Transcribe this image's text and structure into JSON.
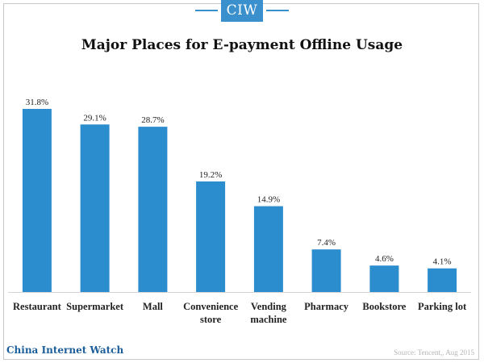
{
  "logo": "CIW",
  "brand": "China Internet Watch",
  "source": "Source: Tencent,, Aug 2015",
  "colors": {
    "bar": "#2b8cce",
    "logo": "#3a8fcd",
    "brand": "#1b5e9a"
  },
  "chart_data": {
    "type": "bar",
    "title": "Major Places for E-payment Offline Usage",
    "xlabel": "",
    "ylabel": "",
    "categories": [
      "Restaurant",
      "Supermarket",
      "Mall",
      "Convenience store",
      "Vending machine",
      "Pharmacy",
      "Bookstore",
      "Parking lot"
    ],
    "category_lines": [
      [
        "Restaurant"
      ],
      [
        "Supermarket"
      ],
      [
        "Mall"
      ],
      [
        "Convenience",
        "store"
      ],
      [
        "Vending",
        "machine"
      ],
      [
        "Pharmacy"
      ],
      [
        "Bookstore"
      ],
      [
        "Parking lot"
      ]
    ],
    "values": [
      31.8,
      29.1,
      28.7,
      19.2,
      14.9,
      7.4,
      4.6,
      4.1
    ],
    "value_labels": [
      "31.8%",
      "29.1%",
      "28.7%",
      "19.2%",
      "14.9%",
      "7.4%",
      "4.6%",
      "4.1%"
    ],
    "ylim": [
      0,
      32
    ],
    "grid": false,
    "legend": "none"
  }
}
